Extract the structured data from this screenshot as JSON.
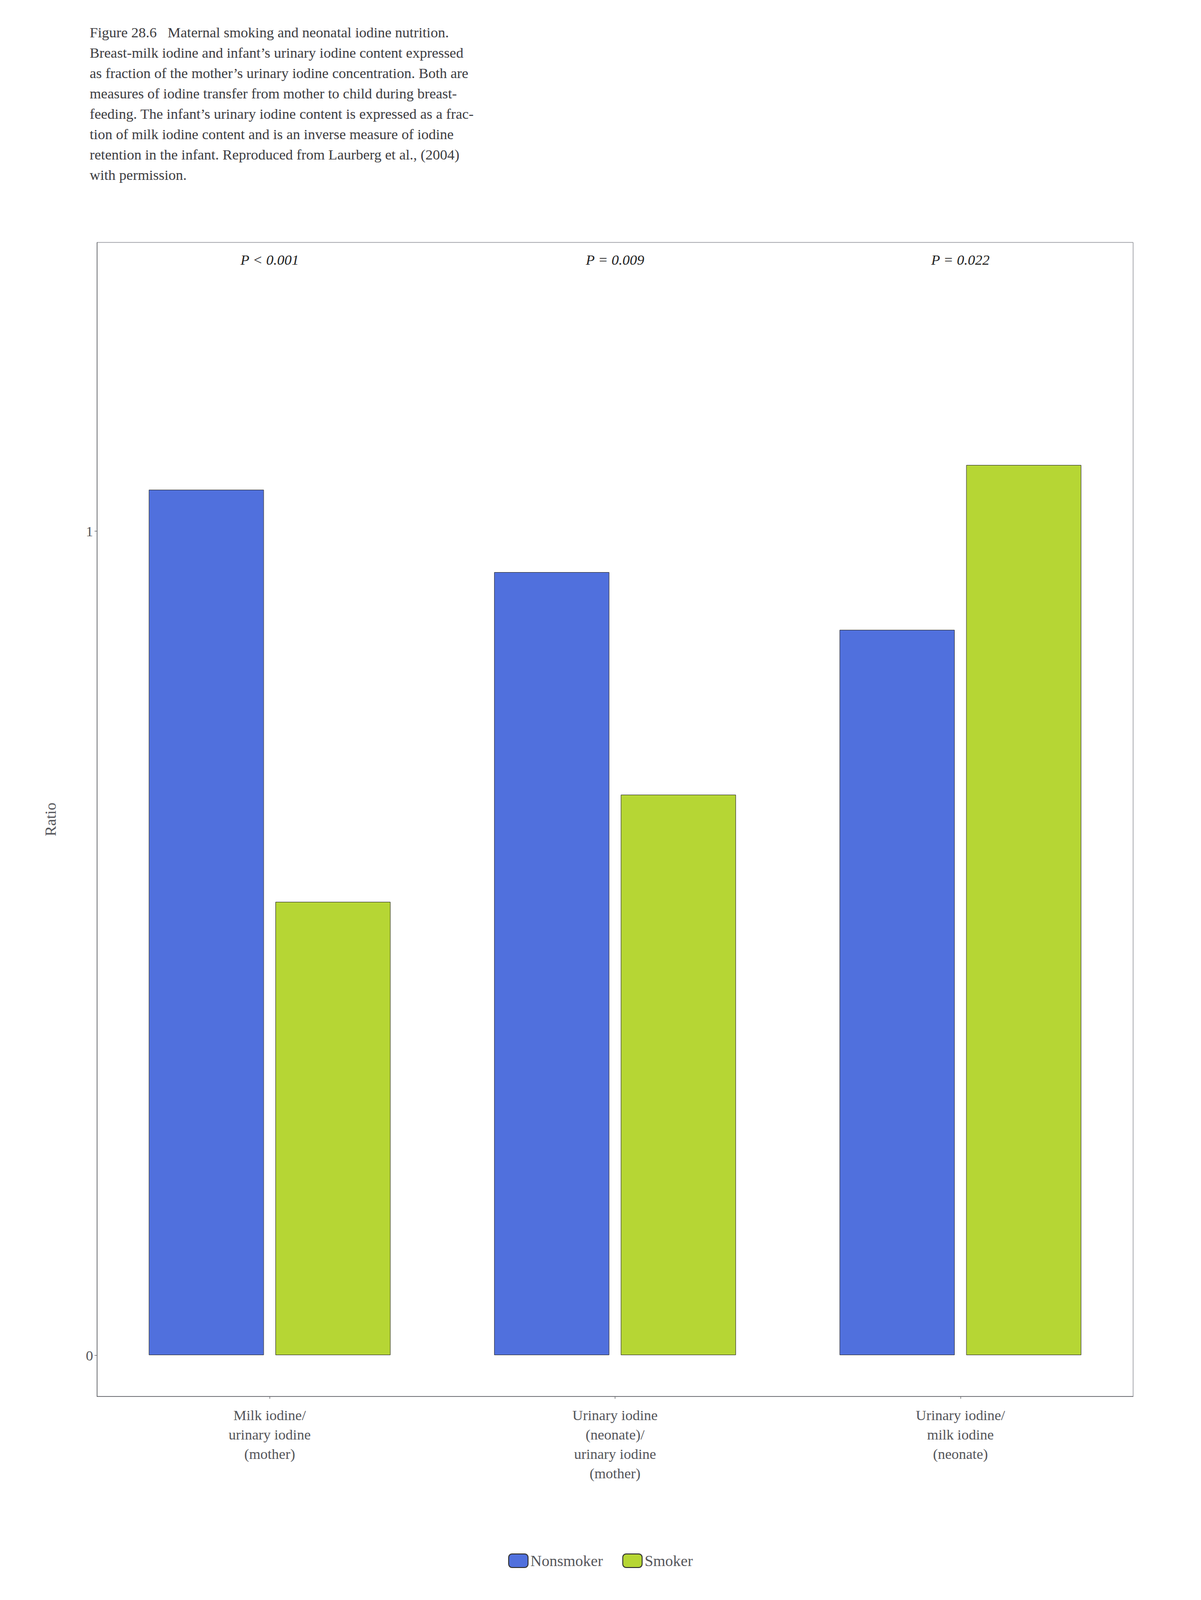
{
  "chart_data": {
    "type": "bar",
    "title": "Figure 28.6  Maternal smoking and neonatal iodine nutrition.\nBreast-milk iodine and infant’s urinary iodine content expressed\nas fraction of the mother’s urinary iodine concentration. Both are\nmeasures of iodine transfer from mother to child during breast-\nfeeding. The infant’s urinary iodine content is expressed as a frac-\ntion of milk iodine content and is an inverse measure of iodine\nretention in the infant. Reproduced from Laurberg et al., (2004)\nwith permission.",
    "categories": [
      "Milk iodine/\nurinary iodine\n(mother)",
      "Urinary iodine\n(neonate)/\nurinary iodine\n(mother)",
      "Urinary iodine/\nmilk iodine\n(neonate)"
    ],
    "series": [
      {
        "name": "Nonsmoker",
        "values": [
          1.05,
          0.95,
          0.88
        ]
      },
      {
        "name": "Smoker",
        "values": [
          0.55,
          0.68,
          1.08
        ]
      }
    ],
    "ylabel": "Ratio",
    "ylim": [
      -0.05,
      1.35
    ],
    "yticks": [
      0,
      1
    ],
    "annotations": [
      "P < 0.001",
      "P = 0.009",
      "P = 0.022"
    ],
    "grid": false,
    "legend": "bottom"
  }
}
